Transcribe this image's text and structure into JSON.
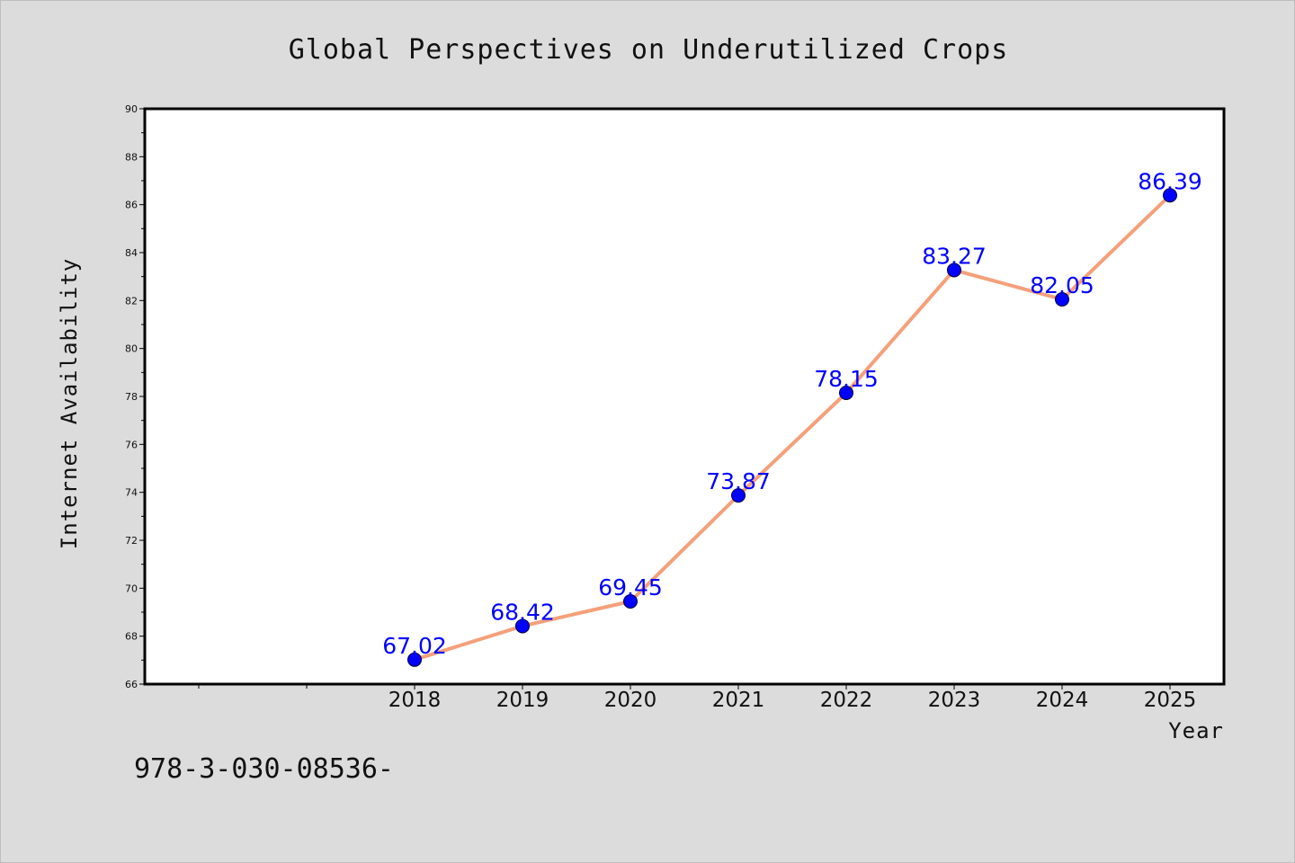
{
  "chart_data": {
    "type": "line",
    "title": "Global Perspectives on Underutilized Crops",
    "xlabel": "Year",
    "ylabel": "Internet Availability",
    "categories": [
      "2018",
      "2019",
      "2020",
      "2021",
      "2022",
      "2023",
      "2024",
      "2025"
    ],
    "x": [
      2018,
      2019,
      2020,
      2021,
      2022,
      2023,
      2024,
      2025
    ],
    "series": [
      {
        "values": [
          67.02,
          68.42,
          69.45,
          73.87,
          78.15,
          83.27,
          82.05,
          86.39
        ],
        "labels": [
          "67.02",
          "68.42",
          "69.45",
          "73.87",
          "78.15",
          "83.27",
          "82.05",
          "86.39"
        ]
      }
    ],
    "xlim": [
      2015.5,
      2025.5
    ],
    "ylim": [
      66,
      90
    ],
    "yticks": [
      "66",
      "68",
      "70",
      "72",
      "74",
      "76",
      "78",
      "80",
      "82",
      "84",
      "86",
      "88",
      "90"
    ],
    "grid": false,
    "legend": "none",
    "colors": {
      "line": "#f4a07a",
      "marker": "#0000ff",
      "data_label": "#0000ff",
      "figure_background": "#dcdcdc",
      "plot_background": "#ffffff"
    }
  },
  "footer": {
    "code": "978-3-030-08536-"
  }
}
